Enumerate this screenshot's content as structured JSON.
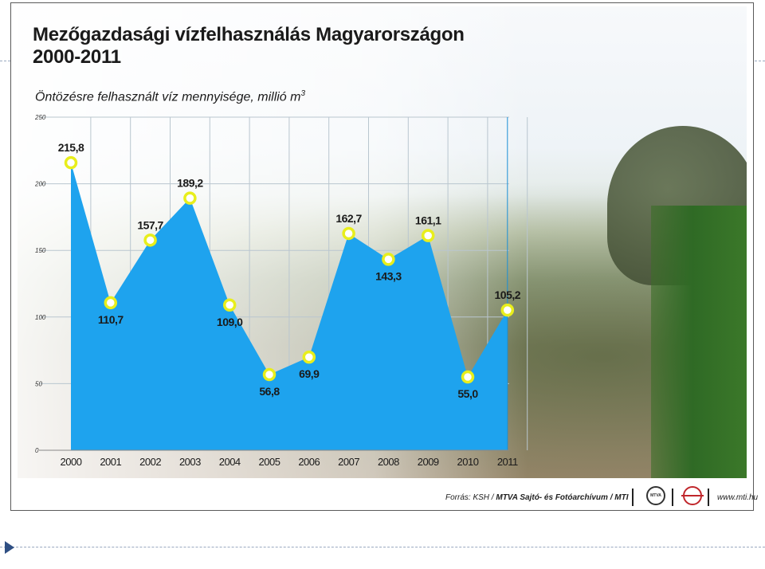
{
  "title_line1": "Mezőgazdasági vízfelhasználás Magyarországon",
  "title_line2": "2000-2011",
  "subtitle": "Öntözésre felhasznált víz mennyisége, millió m",
  "subtitle_sup": "3",
  "source_prefix": "Forrás: KSH / ",
  "source_bold": "MTVA Sajtó- és Fotóarchívum / MTI",
  "logo_text": "MTVA",
  "website": "www.mti.hu",
  "colors": {
    "area": "#1ea3ee",
    "marker": "#e8ee1c",
    "grid": "#b9c6cf",
    "text": "#1a1a1a"
  },
  "chart_data": {
    "type": "area",
    "x": [
      "2000",
      "2001",
      "2002",
      "2003",
      "2004",
      "2005",
      "2006",
      "2007",
      "2008",
      "2009",
      "2010",
      "2011"
    ],
    "values": [
      215.8,
      110.7,
      157.7,
      189.2,
      109.0,
      56.8,
      69.9,
      162.7,
      143.3,
      161.1,
      55.0,
      105.2
    ],
    "data_labels": [
      "215,8",
      "110,7",
      "157,7",
      "189,2",
      "109,0",
      "56,8",
      "69,9",
      "162,7",
      "143,3",
      "161,1",
      "55,0",
      "105,2"
    ],
    "label_position": [
      "above",
      "below",
      "above",
      "above",
      "below",
      "below",
      "below",
      "above",
      "below",
      "above",
      "below",
      "above"
    ],
    "yticks": [
      0,
      50,
      100,
      150,
      200,
      250
    ],
    "ylim": [
      0,
      250
    ],
    "grid": true
  }
}
